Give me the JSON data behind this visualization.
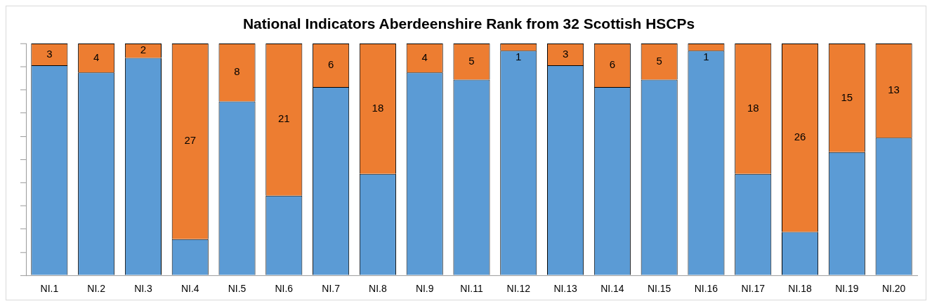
{
  "chart_data": {
    "type": "bar",
    "title": "National Indicators Aberdeenshire Rank from 32 Scottish HSCPs",
    "stacked": true,
    "legend": false,
    "grid": false,
    "tick_labels": "x",
    "ylim": [
      0,
      32
    ],
    "yticks": [
      {
        "value": 0,
        "label": null
      },
      {
        "value": 3.2,
        "label": null
      },
      {
        "value": 6.4,
        "label": null
      },
      {
        "value": 9.6,
        "label": null
      },
      {
        "value": 12.8,
        "label": null
      },
      {
        "value": 16,
        "label": null
      },
      {
        "value": 19.2,
        "label": null
      },
      {
        "value": 22.4,
        "label": null
      },
      {
        "value": 25.6,
        "label": null
      },
      {
        "value": 28.8,
        "label": null
      },
      {
        "value": 32,
        "label": null
      }
    ],
    "categories": [
      "NI.1",
      "NI.2",
      "NI.3",
      "NI.4",
      "NI.5",
      "NI.6",
      "NI.7",
      "NI.8",
      "NI.9",
      "NI.11",
      "NI.12",
      "NI.13",
      "NI.14",
      "NI.15",
      "NI.16",
      "NI.17",
      "NI.18",
      "NI.19",
      "NI.20"
    ],
    "series": [
      {
        "color": "#5b9bd5",
        "values": [
          29,
          28,
          30,
          5,
          24,
          11,
          26,
          14,
          28,
          27,
          31,
          29,
          26,
          27,
          31,
          14,
          6,
          17,
          19
        ]
      },
      {
        "color": "#ed7d31",
        "values": [
          3,
          4,
          2,
          27,
          8,
          21,
          6,
          18,
          4,
          5,
          1,
          3,
          6,
          5,
          1,
          18,
          26,
          15,
          13
        ],
        "value_labels": [
          "3",
          "4",
          "2",
          "27",
          "8",
          "21",
          "6",
          "18",
          "4",
          "5",
          "1",
          "3",
          "6",
          "5",
          "1",
          "18",
          "26",
          "15",
          "13"
        ]
      }
    ]
  }
}
